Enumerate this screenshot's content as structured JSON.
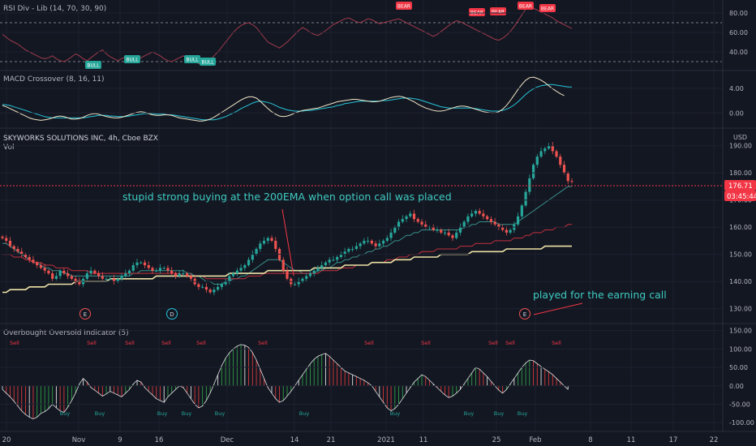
{
  "chart_data": {
    "type": "candlestick",
    "instrument": "SKYWORKS SOLUTIONS INC, 4h, Cboe BZX",
    "volume_label": "Vol",
    "currency": "USD",
    "price_ticks": [
      "190.00",
      "180.00",
      "170.00",
      "160.00",
      "150.00",
      "140.00",
      "130.00"
    ],
    "price_range": [
      126,
      195
    ],
    "last_price": "176.71",
    "countdown": "03:45:44",
    "last_price_value": 176.71,
    "candles_close": [
      156,
      155,
      153,
      152,
      151,
      150,
      149,
      148,
      147,
      146,
      145,
      144,
      143,
      141,
      142,
      144,
      143,
      142,
      141,
      140,
      139,
      141,
      143,
      144,
      143,
      142,
      141,
      141,
      141,
      140,
      141,
      142,
      143,
      144,
      146,
      147,
      147,
      146,
      145,
      144,
      144,
      145,
      145,
      144,
      143,
      142,
      143,
      143,
      142,
      141,
      139,
      138,
      138,
      137,
      136,
      137,
      138,
      139,
      140,
      142,
      143,
      144,
      145,
      146,
      148,
      150,
      152,
      154,
      155,
      156,
      155,
      152,
      148,
      144,
      141,
      139,
      139,
      140,
      141,
      142,
      143,
      144,
      145,
      146,
      147,
      148,
      148,
      149,
      150,
      151,
      152,
      152,
      153,
      154,
      155,
      155,
      154,
      153,
      154,
      155,
      156,
      158,
      160,
      162,
      163,
      164,
      165,
      163,
      162,
      161,
      160,
      160,
      159,
      159,
      158,
      158,
      157,
      156,
      158,
      160,
      162,
      164,
      165,
      166,
      165,
      164,
      163,
      162,
      161,
      160,
      159,
      158,
      159,
      161,
      164,
      168,
      173,
      178,
      183,
      186,
      188,
      189,
      190,
      188,
      186,
      183,
      180,
      177,
      176.71
    ],
    "ema_fast": [
      154,
      154,
      153,
      152,
      151,
      150,
      149,
      148,
      147,
      147,
      146,
      145,
      145,
      144,
      144,
      144,
      143,
      143,
      142,
      142,
      142,
      142,
      142,
      142,
      142,
      142,
      142,
      142,
      142,
      142,
      142,
      142,
      142,
      142,
      143,
      143,
      144,
      144,
      144,
      144,
      144,
      144,
      144,
      144,
      144,
      144,
      144,
      144,
      143,
      143,
      142,
      142,
      141,
      140,
      140,
      139,
      139,
      139,
      140,
      140,
      141,
      141,
      142,
      142,
      143,
      144,
      145,
      146,
      147,
      148,
      148,
      148,
      148,
      147,
      146,
      145,
      144,
      144,
      143,
      143,
      143,
      143,
      144,
      144,
      145,
      145,
      146,
      147,
      147,
      148,
      148,
      149,
      149,
      150,
      150,
      151,
      151,
      152,
      152,
      153,
      153,
      154,
      155,
      155,
      156,
      157,
      157,
      158,
      158,
      159,
      159,
      159,
      159,
      159,
      159,
      159,
      159,
      159,
      159,
      159,
      160,
      160,
      161,
      161,
      162,
      162,
      162,
      162,
      162,
      161,
      161,
      161,
      161,
      161,
      162,
      163,
      164,
      165,
      166,
      167,
      168,
      169,
      170,
      171,
      172,
      173,
      174,
      175,
      175
    ],
    "ema_mid": [
      150,
      150,
      150,
      149,
      149,
      149,
      148,
      148,
      147,
      147,
      147,
      146,
      146,
      146,
      145,
      145,
      145,
      145,
      144,
      144,
      144,
      144,
      144,
      143,
      143,
      143,
      143,
      143,
      143,
      143,
      143,
      143,
      143,
      143,
      143,
      143,
      143,
      143,
      143,
      143,
      143,
      143,
      143,
      143,
      143,
      143,
      143,
      142,
      142,
      142,
      142,
      142,
      142,
      141,
      141,
      141,
      141,
      141,
      141,
      141,
      141,
      141,
      141,
      141,
      142,
      142,
      142,
      142,
      143,
      143,
      143,
      143,
      143,
      143,
      143,
      143,
      143,
      143,
      143,
      143,
      143,
      143,
      143,
      144,
      144,
      144,
      144,
      144,
      145,
      145,
      145,
      145,
      146,
      146,
      146,
      146,
      147,
      147,
      147,
      147,
      148,
      148,
      148,
      149,
      149,
      149,
      150,
      150,
      150,
      151,
      151,
      151,
      151,
      152,
      152,
      152,
      152,
      152,
      152,
      153,
      153,
      153,
      153,
      154,
      154,
      154,
      154,
      154,
      155,
      155,
      155,
      155,
      155,
      156,
      156,
      156,
      157,
      157,
      158,
      158,
      158,
      159,
      159,
      159,
      160,
      160,
      160,
      161,
      161
    ],
    "ema_200": [
      136,
      136,
      137,
      137,
      137,
      137,
      137,
      138,
      138,
      138,
      138,
      138,
      139,
      139,
      139,
      139,
      139,
      139,
      139,
      140,
      140,
      140,
      140,
      140,
      140,
      140,
      140,
      140,
      141,
      141,
      141,
      141,
      141,
      141,
      141,
      141,
      141,
      141,
      141,
      141,
      142,
      142,
      142,
      142,
      142,
      142,
      142,
      142,
      142,
      142,
      142,
      142,
      142,
      142,
      142,
      142,
      142,
      142,
      142,
      143,
      143,
      143,
      143,
      143,
      143,
      143,
      143,
      143,
      143,
      144,
      144,
      144,
      144,
      144,
      144,
      144,
      144,
      144,
      144,
      144,
      144,
      145,
      145,
      145,
      145,
      145,
      145,
      145,
      145,
      146,
      146,
      146,
      146,
      146,
      146,
      146,
      147,
      147,
      147,
      147,
      147,
      147,
      148,
      148,
      148,
      148,
      148,
      149,
      149,
      149,
      149,
      149,
      149,
      149,
      150,
      150,
      150,
      150,
      150,
      150,
      150,
      150,
      151,
      151,
      151,
      151,
      151,
      151,
      151,
      151,
      151,
      152,
      152,
      152,
      152,
      152,
      152,
      152,
      152,
      152,
      152,
      153,
      153,
      153,
      153,
      153,
      153,
      153,
      153
    ],
    "event_markers": [
      "E",
      "D",
      "E"
    ],
    "annotations": [
      "stupid strong buying at the 200EMA when option call was placed",
      "played for the earning call"
    ],
    "x_tick_labels": [
      "20",
      "Nov",
      "9",
      "16",
      "Dec",
      "14",
      "21",
      "2021",
      "11",
      "25",
      "Feb",
      "8",
      "11",
      "17",
      "22"
    ],
    "rsi": {
      "title": "RSI Div - Lib (14, 70, 30, 90)",
      "ticks": [
        "80.00",
        "60.00",
        "40.00"
      ],
      "range": [
        25,
        90
      ],
      "bull_label": "BULL",
      "bear_label": "BEAR",
      "values": [
        58,
        55,
        52,
        50,
        48,
        45,
        42,
        40,
        38,
        36,
        34,
        33,
        34,
        36,
        33,
        31,
        30,
        32,
        35,
        38,
        36,
        33,
        31,
        34,
        37,
        40,
        42,
        38,
        35,
        33,
        31,
        33,
        35,
        32,
        30,
        32,
        34,
        36,
        38,
        40,
        38,
        36,
        33,
        31,
        30,
        32,
        34,
        36,
        34,
        32,
        30,
        28,
        27,
        29,
        32,
        36,
        40,
        45,
        50,
        55,
        60,
        64,
        67,
        69,
        70,
        68,
        65,
        60,
        55,
        50,
        48,
        46,
        44,
        47,
        50,
        54,
        58,
        62,
        65,
        63,
        60,
        58,
        57,
        59,
        62,
        65,
        68,
        70,
        72,
        74,
        75,
        73,
        71,
        70,
        72,
        74,
        73,
        71,
        69,
        70,
        71,
        72,
        73,
        74,
        72,
        70,
        68,
        66,
        64,
        62,
        60,
        58,
        56,
        58,
        61,
        64,
        67,
        70,
        72,
        71,
        69,
        67,
        65,
        63,
        61,
        59,
        57,
        55,
        53,
        52,
        54,
        57,
        61,
        66,
        72,
        78,
        84,
        86,
        85,
        83,
        81,
        79,
        77,
        75,
        72,
        70,
        68,
        66,
        64
      ]
    },
    "macd": {
      "title": "MACD Crossover (8, 16, 11)",
      "ticks": [
        "4.00",
        "0.00"
      ],
      "range": [
        -1.8,
        6.2
      ],
      "macd": [
        1.2,
        1.0,
        0.7,
        0.4,
        0.1,
        -0.2,
        -0.5,
        -0.8,
        -1.0,
        -1.1,
        -1.2,
        -1.1,
        -1.0,
        -0.8,
        -0.6,
        -0.5,
        -0.6,
        -0.8,
        -1.0,
        -1.0,
        -0.9,
        -0.7,
        -0.4,
        -0.2,
        -0.1,
        -0.2,
        -0.4,
        -0.6,
        -0.7,
        -0.8,
        -0.8,
        -0.7,
        -0.5,
        -0.3,
        -0.1,
        0.1,
        0.2,
        0.1,
        -0.1,
        -0.3,
        -0.4,
        -0.4,
        -0.3,
        -0.3,
        -0.4,
        -0.6,
        -0.8,
        -0.9,
        -1.0,
        -1.1,
        -1.2,
        -1.3,
        -1.3,
        -1.2,
        -1.0,
        -0.7,
        -0.3,
        0.1,
        0.5,
        0.9,
        1.3,
        1.7,
        2.1,
        2.4,
        2.6,
        2.6,
        2.4,
        1.9,
        1.3,
        0.7,
        0.2,
        -0.2,
        -0.5,
        -0.6,
        -0.5,
        -0.3,
        0.0,
        0.2,
        0.4,
        0.5,
        0.6,
        0.7,
        0.8,
        1.0,
        1.2,
        1.4,
        1.6,
        1.8,
        1.9,
        2.0,
        2.1,
        2.2,
        2.2,
        2.1,
        2.0,
        1.9,
        1.8,
        1.8,
        1.9,
        2.1,
        2.3,
        2.5,
        2.6,
        2.7,
        2.6,
        2.4,
        2.1,
        1.8,
        1.4,
        1.1,
        0.8,
        0.6,
        0.4,
        0.3,
        0.3,
        0.4,
        0.6,
        0.8,
        1.0,
        1.1,
        1.1,
        1.0,
        0.8,
        0.6,
        0.4,
        0.2,
        0.1,
        0.0,
        0.0,
        0.2,
        0.6,
        1.2,
        2.0,
        2.9,
        3.8,
        4.6,
        5.3,
        5.7,
        5.8,
        5.6,
        5.3,
        4.9,
        4.4,
        3.9,
        3.5,
        3.1,
        2.8
      ],
      "signal": [
        1.4,
        1.3,
        1.2,
        1.0,
        0.8,
        0.6,
        0.4,
        0.2,
        0.0,
        -0.2,
        -0.4,
        -0.6,
        -0.7,
        -0.8,
        -0.8,
        -0.8,
        -0.8,
        -0.8,
        -0.8,
        -0.8,
        -0.8,
        -0.8,
        -0.7,
        -0.6,
        -0.5,
        -0.4,
        -0.4,
        -0.4,
        -0.5,
        -0.5,
        -0.6,
        -0.6,
        -0.6,
        -0.5,
        -0.4,
        -0.3,
        -0.2,
        -0.1,
        -0.1,
        -0.1,
        -0.2,
        -0.2,
        -0.2,
        -0.3,
        -0.3,
        -0.4,
        -0.5,
        -0.6,
        -0.7,
        -0.8,
        -0.9,
        -1.0,
        -1.1,
        -1.1,
        -1.1,
        -1.1,
        -1.0,
        -0.8,
        -0.6,
        -0.3,
        0.0,
        0.3,
        0.7,
        1.0,
        1.3,
        1.6,
        1.8,
        1.9,
        1.8,
        1.7,
        1.5,
        1.2,
        0.9,
        0.7,
        0.5,
        0.4,
        0.3,
        0.3,
        0.3,
        0.4,
        0.4,
        0.5,
        0.6,
        0.7,
        0.8,
        0.9,
        1.0,
        1.2,
        1.3,
        1.5,
        1.6,
        1.7,
        1.8,
        1.9,
        1.9,
        1.9,
        1.9,
        1.9,
        1.9,
        2.0,
        2.0,
        2.1,
        2.2,
        2.3,
        2.4,
        2.4,
        2.4,
        2.3,
        2.2,
        2.0,
        1.8,
        1.6,
        1.4,
        1.2,
        1.0,
        0.9,
        0.8,
        0.8,
        0.8,
        0.8,
        0.8,
        0.8,
        0.8,
        0.7,
        0.6,
        0.5,
        0.4,
        0.3,
        0.3,
        0.3,
        0.4,
        0.6,
        0.9,
        1.3,
        1.8,
        2.4,
        3.0,
        3.5,
        3.9,
        4.2,
        4.4,
        4.5,
        4.6,
        4.6,
        4.5,
        4.4,
        4.3,
        4.2,
        4.2
      ]
    },
    "oscillator": {
      "title": "Overbought Oversold Indicator (5)",
      "ticks": [
        "150.00",
        "100.00",
        "50.00",
        "0.00",
        "-50.00",
        "-100.00"
      ],
      "range": [
        -115,
        158
      ],
      "buy_label": "Buy",
      "sell_label": "Sell",
      "values": [
        -10,
        -20,
        -30,
        -42,
        -55,
        -68,
        -78,
        -85,
        -90,
        -85,
        -75,
        -70,
        -62,
        -50,
        -60,
        -68,
        -72,
        -58,
        -40,
        -20,
        5,
        20,
        10,
        -5,
        -12,
        -20,
        -28,
        -22,
        -15,
        -20,
        -25,
        -30,
        -20,
        -10,
        5,
        15,
        10,
        -5,
        -15,
        -25,
        -35,
        -40,
        -45,
        -30,
        -20,
        -10,
        0,
        -5,
        -20,
        -35,
        -50,
        -60,
        -55,
        -40,
        -20,
        5,
        30,
        55,
        75,
        90,
        100,
        108,
        112,
        110,
        104,
        90,
        70,
        45,
        20,
        -5,
        -20,
        -35,
        -45,
        -40,
        -28,
        -15,
        0,
        15,
        30,
        45,
        60,
        72,
        80,
        85,
        88,
        80,
        70,
        60,
        50,
        40,
        35,
        30,
        25,
        20,
        15,
        8,
        0,
        -15,
        -30,
        -45,
        -60,
        -68,
        -62,
        -50,
        -35,
        -20,
        -5,
        10,
        20,
        30,
        25,
        15,
        5,
        -5,
        -15,
        -25,
        -32,
        -28,
        -20,
        -10,
        5,
        20,
        35,
        50,
        45,
        35,
        25,
        12,
        0,
        -12,
        -20,
        -10,
        5,
        20,
        35,
        50,
        62,
        70,
        68,
        60,
        52,
        45,
        38,
        30,
        20,
        10,
        0,
        -10
      ]
    }
  }
}
